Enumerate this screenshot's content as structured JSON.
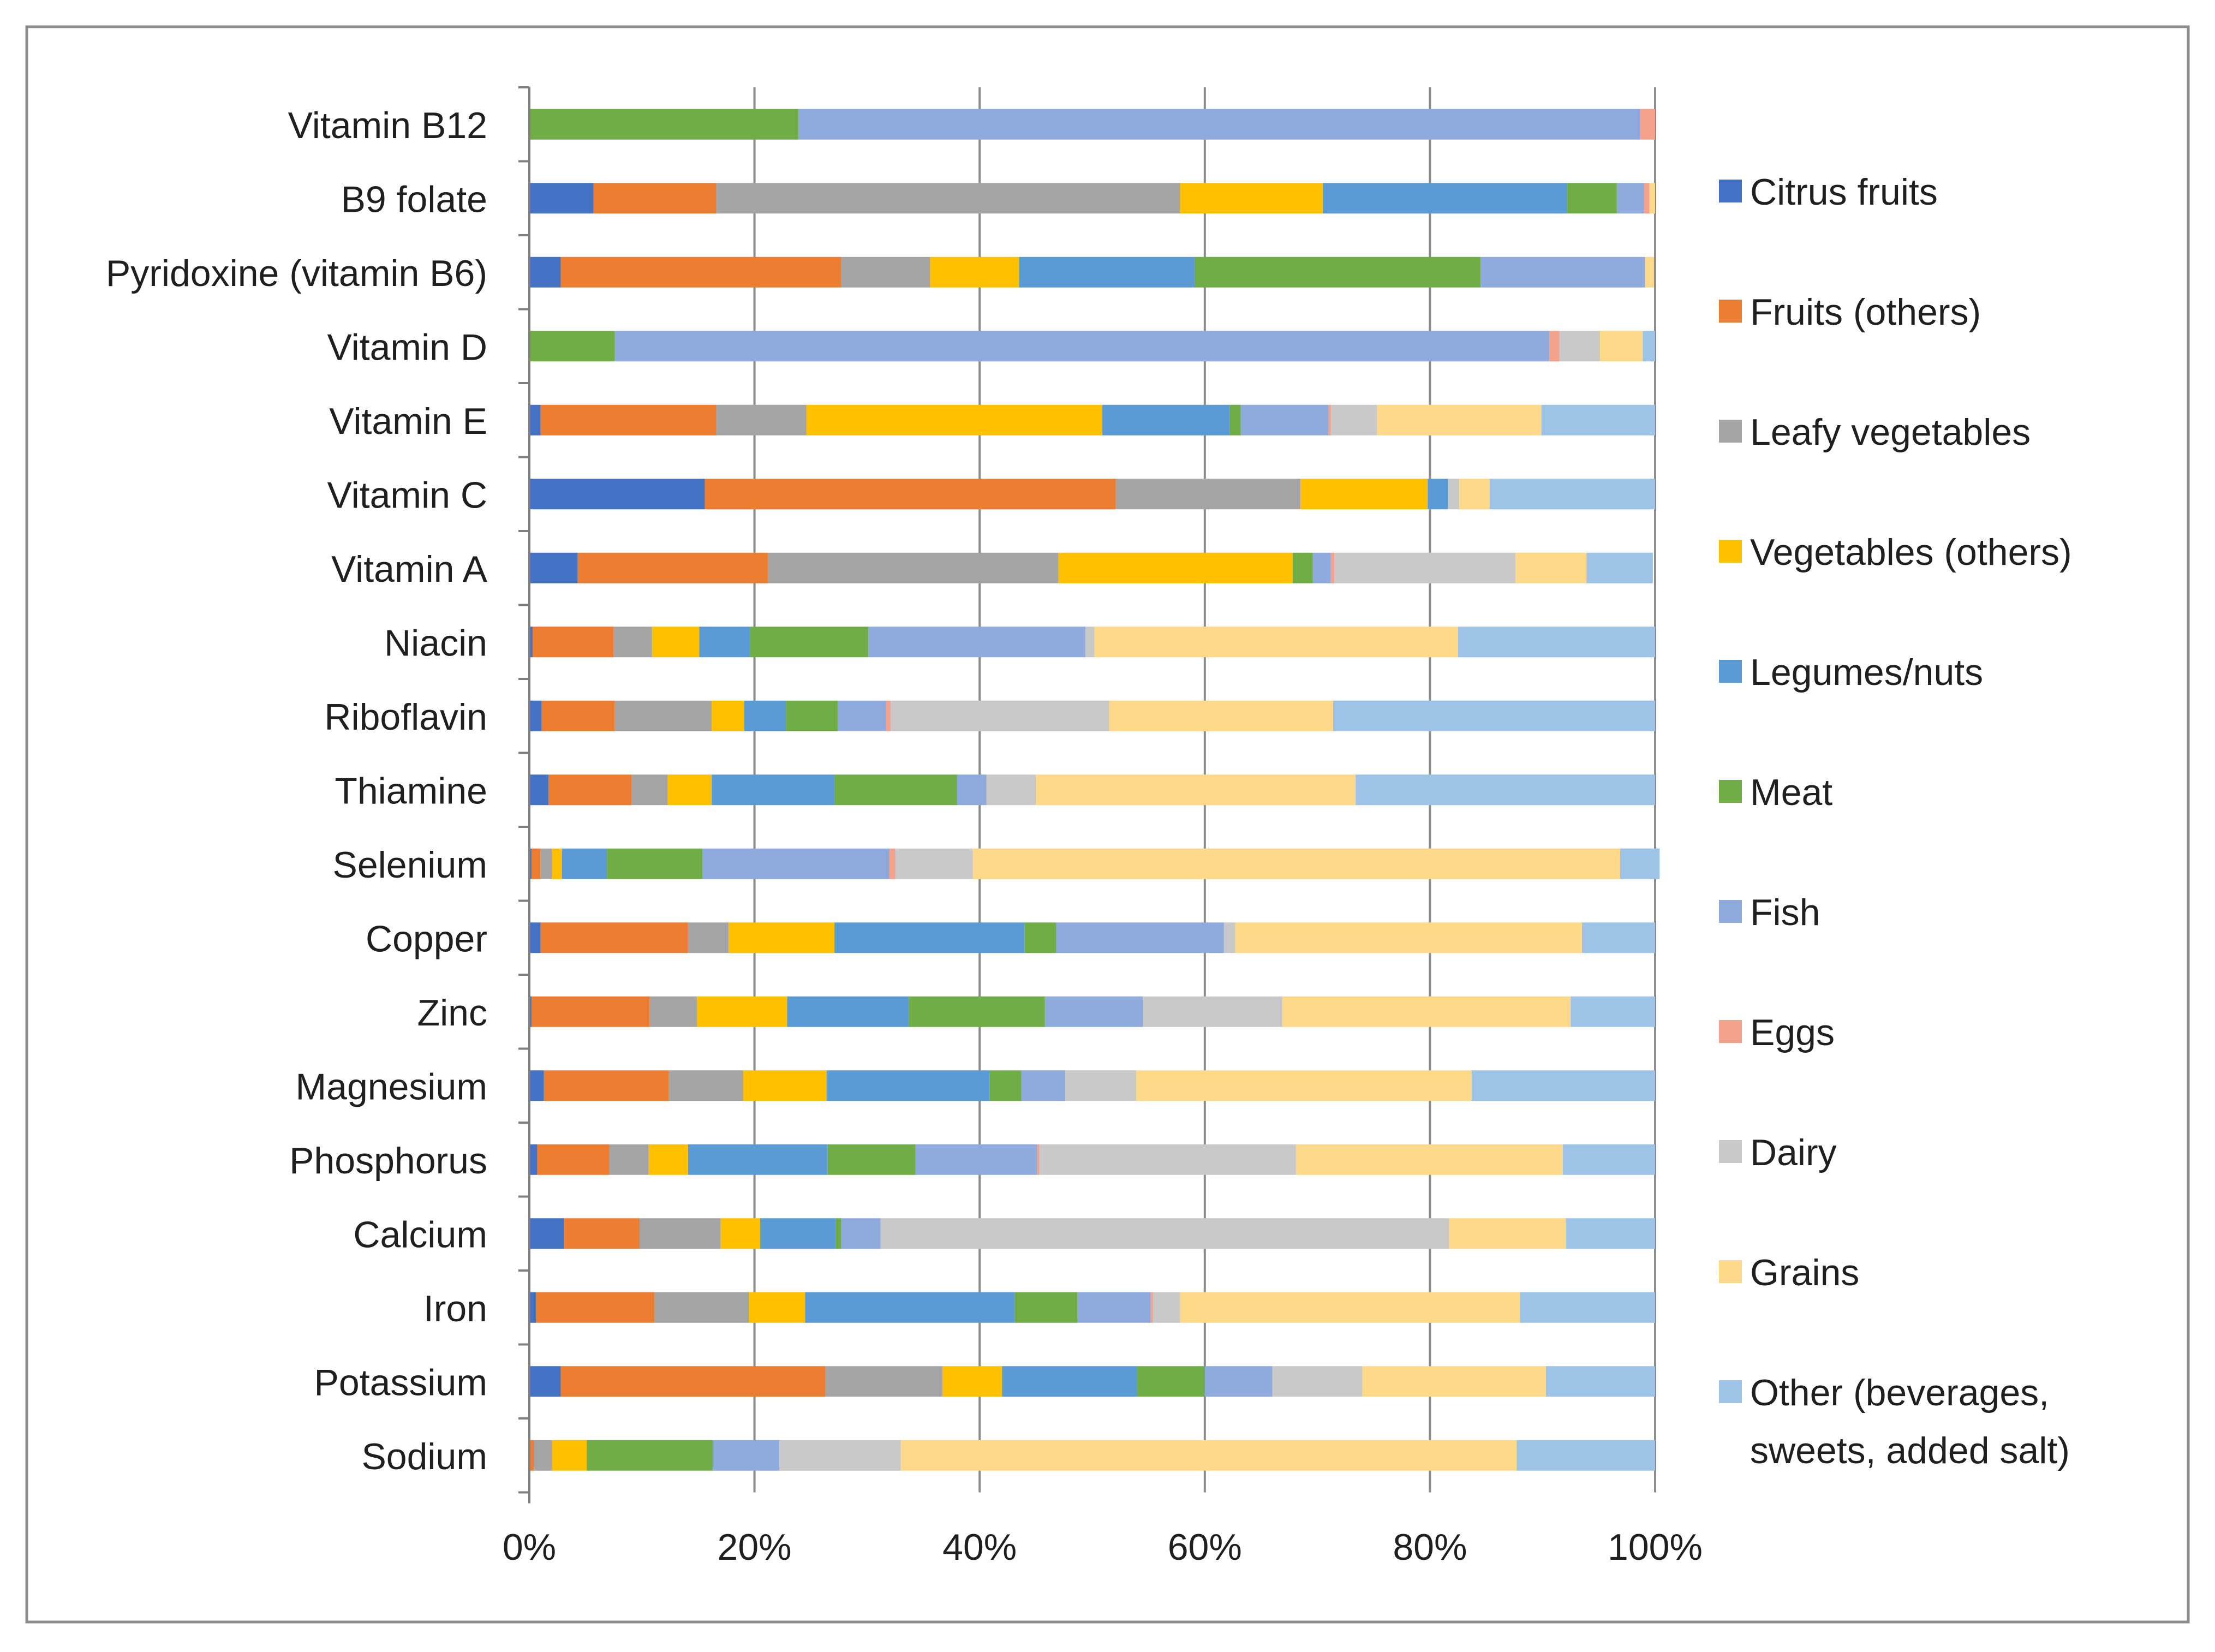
{
  "chart_data": {
    "type": "bar",
    "orientation": "horizontal",
    "stacked": "percent",
    "title": "",
    "xlabel": "",
    "ylabel": "",
    "xlim": [
      0,
      100
    ],
    "x_ticks": [
      "0%",
      "20%",
      "40%",
      "60%",
      "80%",
      "100%"
    ],
    "grid": "vertical",
    "legend_position": "right",
    "categories": [
      "Vitamin B12",
      "B9 folate",
      "Pyridoxine (vitamin B6)",
      "Vitamin D",
      "Vitamin E",
      "Vitamin C",
      "Vitamin A",
      "Niacin",
      "Riboflavin",
      "Thiamine",
      "Selenium",
      "Copper",
      "Zinc",
      "Magnesium",
      "Phosphorus",
      "Calcium",
      "Iron",
      "Potassium",
      "Sodium"
    ],
    "series": [
      {
        "name": "Citrus fruits",
        "color": "#4472C4",
        "values": [
          0,
          5.7,
          2.8,
          0,
          1.0,
          15.6,
          4.3,
          0.3,
          1.1,
          1.7,
          0.2,
          1.0,
          0.2,
          1.3,
          0.7,
          3.1,
          0.6,
          2.8,
          0
        ]
      },
      {
        "name": "Fruits (others)",
        "color": "#ED7D31",
        "values": [
          0,
          10.9,
          24.9,
          0,
          15.6,
          36.5,
          16.9,
          7.2,
          6.5,
          7.4,
          0.8,
          13.1,
          10.5,
          11.1,
          6.4,
          6.7,
          10.5,
          23.5,
          0.4
        ]
      },
      {
        "name": "Leafy vegetables",
        "color": "#A5A5A5",
        "values": [
          0,
          41.2,
          7.9,
          0,
          8.0,
          16.4,
          25.8,
          3.4,
          8.6,
          3.2,
          1.0,
          3.6,
          4.2,
          6.6,
          3.5,
          7.2,
          8.4,
          10.4,
          1.6
        ]
      },
      {
        "name": "Vegetables (others)",
        "color": "#FFC000",
        "values": [
          0,
          12.7,
          7.9,
          0,
          26.3,
          11.3,
          20.8,
          4.2,
          2.9,
          3.9,
          0.9,
          9.4,
          8.0,
          7.4,
          3.5,
          3.5,
          5.0,
          5.3,
          3.1
        ]
      },
      {
        "name": "Legumes/nuts",
        "color": "#5B9BD5",
        "values": [
          0,
          21.7,
          15.6,
          0,
          11.3,
          1.8,
          0,
          4.5,
          3.7,
          10.9,
          4.0,
          16.9,
          10.8,
          14.5,
          12.4,
          6.7,
          18.6,
          12.0,
          0
        ]
      },
      {
        "name": "Meat",
        "color": "#70AD47",
        "values": [
          23.9,
          4.4,
          25.4,
          7.6,
          1.0,
          0,
          1.8,
          10.5,
          4.6,
          10.9,
          8.5,
          2.8,
          12.1,
          2.8,
          7.8,
          0.5,
          5.6,
          6.0,
          11.2
        ]
      },
      {
        "name": "Fish",
        "color": "#8FAADC",
        "values": [
          74.8,
          2.4,
          14.6,
          83.0,
          7.8,
          0,
          1.6,
          19.3,
          4.3,
          2.6,
          16.6,
          14.9,
          8.7,
          3.9,
          10.8,
          3.5,
          6.5,
          6.0,
          5.9
        ]
      },
      {
        "name": "Eggs",
        "color": "#F4A28C",
        "values": [
          1.3,
          0.5,
          0,
          0.9,
          0.2,
          0,
          0.3,
          0,
          0.4,
          0,
          0.5,
          0,
          0,
          0,
          0.2,
          0,
          0.2,
          0,
          0
        ]
      },
      {
        "name": "Dairy",
        "color": "#C9C9C9",
        "values": [
          0,
          0,
          0,
          3.6,
          4.1,
          1.0,
          16.1,
          0.8,
          19.4,
          4.4,
          6.9,
          1.0,
          12.4,
          6.3,
          22.8,
          50.5,
          2.4,
          8.0,
          10.8
        ]
      },
      {
        "name": "Grains",
        "color": "#FFD98A",
        "values": [
          0,
          0.5,
          0.8,
          3.8,
          14.6,
          2.7,
          6.3,
          32.3,
          19.9,
          28.4,
          57.5,
          30.8,
          25.6,
          29.8,
          23.7,
          10.4,
          30.2,
          16.3,
          54.7
        ]
      },
      {
        "name": "Other (beverages, sweets, added salt)",
        "color": "#9DC3E6",
        "values": [
          0,
          0,
          0,
          1.1,
          10.1,
          14.7,
          5.9,
          17.5,
          28.6,
          26.6,
          3.5,
          6.5,
          7.5,
          16.3,
          8.2,
          7.9,
          12.0,
          9.7,
          12.3
        ]
      }
    ]
  }
}
